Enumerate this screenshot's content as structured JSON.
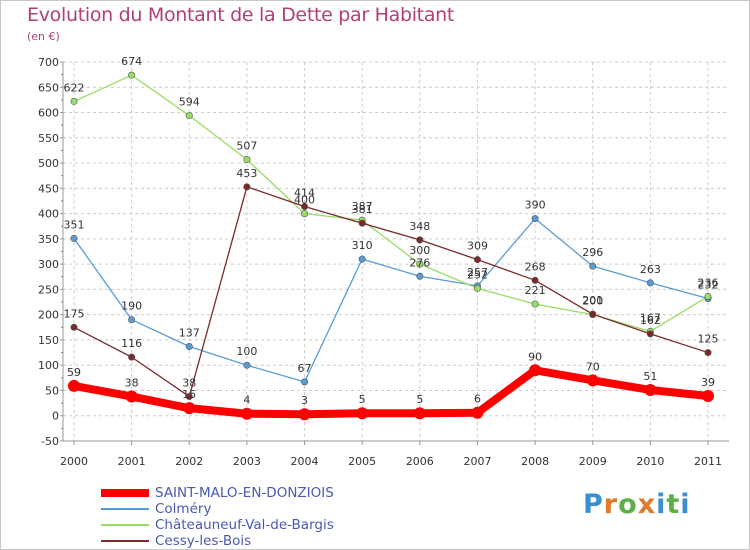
{
  "title": "Evolution du Montant de la Dette par Habitant",
  "subtitle": "(en €)",
  "brand": {
    "letters": [
      "P",
      "r",
      "o",
      "x",
      "i",
      "t",
      "i"
    ],
    "colors": [
      "#3a8fd0",
      "#e07a2a",
      "#5bb04a",
      "#e07a2a",
      "#3a8fd0",
      "#5bb04a",
      "#3a8fd0"
    ]
  },
  "chart_data": {
    "type": "line",
    "title": "Evolution du Montant de la Dette par Habitant",
    "ylabel": "(en €)",
    "xlabel": "",
    "x": [
      "2000",
      "2001",
      "2002",
      "2003",
      "2004",
      "2005",
      "2006",
      "2007",
      "2008",
      "2009",
      "2010",
      "2011"
    ],
    "ylim": [
      -50,
      700
    ],
    "yticks": [
      "-50",
      "0",
      "50",
      "100",
      "150",
      "200",
      "250",
      "300",
      "350",
      "400",
      "450",
      "500",
      "550",
      "600",
      "650",
      "700"
    ],
    "grid": true,
    "legend_position": "bottom-left",
    "series": [
      {
        "name": "SAINT-MALO-EN-DONZIOIS",
        "color": "#ff0000",
        "values": [
          59,
          38,
          15,
          4,
          3,
          5,
          5,
          6,
          90,
          70,
          51,
          39
        ],
        "labels": [
          "59",
          "38",
          "15",
          "4",
          "3",
          "5",
          "5",
          "6",
          "90",
          "70",
          "51",
          "39"
        ]
      },
      {
        "name": "Colméry",
        "color": "#5b9bd5",
        "values": [
          351,
          190,
          137,
          100,
          67,
          310,
          276,
          257,
          390,
          296,
          263,
          232
        ],
        "labels": [
          "351",
          "190",
          "137",
          "100",
          "67",
          "310",
          "276",
          "257",
          "390",
          "296",
          "263",
          "232"
        ]
      },
      {
        "name": "Châteauneuf-Val-de-Bargis",
        "color": "#99dd66",
        "values": [
          622,
          674,
          594,
          507,
          400,
          387,
          300,
          252,
          221,
          200,
          167,
          236
        ],
        "labels": [
          "622",
          "674",
          "594",
          "507",
          "400",
          "387",
          "300",
          "252",
          "221",
          "200",
          "167",
          "236"
        ]
      },
      {
        "name": "Cessy-les-Bois",
        "color": "#7a2a2a",
        "values": [
          175,
          116,
          38,
          453,
          414,
          381,
          348,
          309,
          268,
          201,
          162,
          125
        ],
        "labels": [
          "175",
          "116",
          "38",
          "453",
          "414",
          "381",
          "348",
          "309",
          "268",
          "201",
          "162",
          "125"
        ]
      }
    ]
  }
}
